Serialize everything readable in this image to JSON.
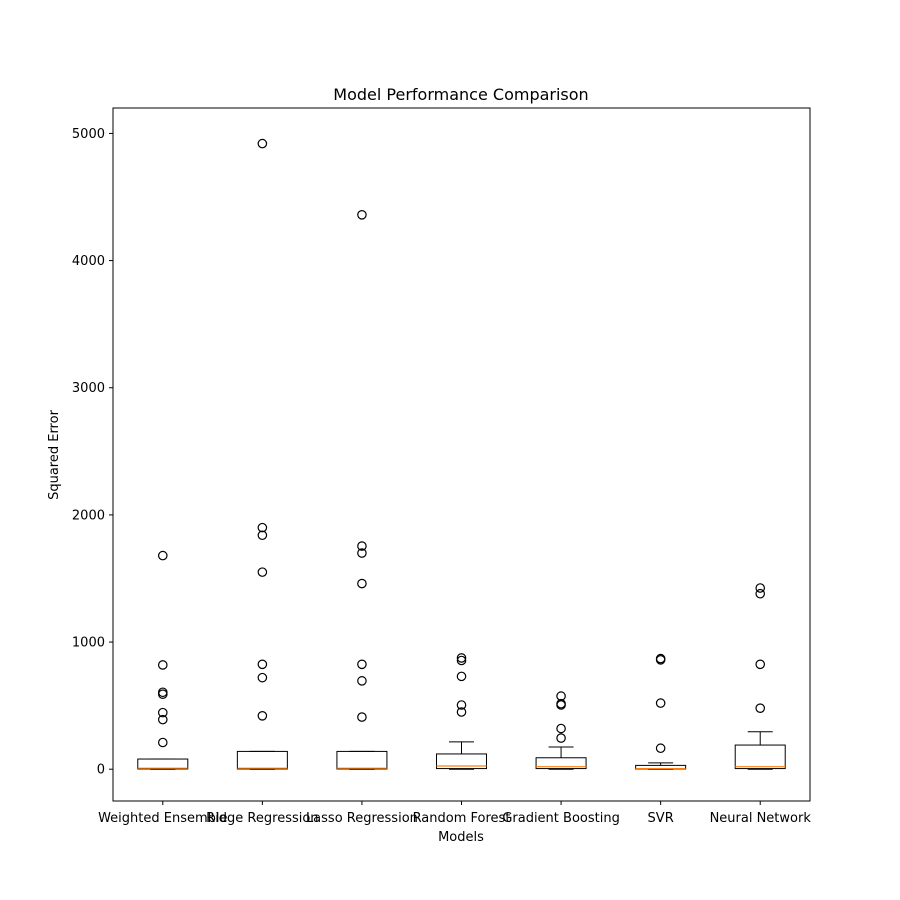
{
  "chart_data": {
    "type": "box",
    "title": "Model Performance Comparison",
    "xlabel": "Models",
    "ylabel": "Squared Error",
    "ylim": [
      -250,
      5200
    ],
    "yticks": [
      0,
      1000,
      2000,
      3000,
      4000,
      5000
    ],
    "grid": false,
    "categories": [
      "Weighted Ensemble",
      "Ridge Regression",
      "Lasso Regression",
      "Random Forest",
      "Gradient Boosting",
      "SVR",
      "Neural Network"
    ],
    "boxes": [
      {
        "whisker_low": 0,
        "q1": 2,
        "median": 8,
        "q3": 80,
        "whisker_high": 80,
        "outliers": [
          210,
          390,
          445,
          590,
          605,
          820,
          1680
        ]
      },
      {
        "whisker_low": 0,
        "q1": 2,
        "median": 8,
        "q3": 140,
        "whisker_high": 140,
        "outliers": [
          420,
          720,
          825,
          1550,
          1840,
          1900,
          4920
        ]
      },
      {
        "whisker_low": 0,
        "q1": 2,
        "median": 8,
        "q3": 140,
        "whisker_high": 140,
        "outliers": [
          410,
          695,
          825,
          1460,
          1700,
          1755,
          4360
        ]
      },
      {
        "whisker_low": 0,
        "q1": 5,
        "median": 25,
        "q3": 120,
        "whisker_high": 215,
        "outliers": [
          450,
          505,
          730,
          855,
          875
        ]
      },
      {
        "whisker_low": 0,
        "q1": 5,
        "median": 20,
        "q3": 90,
        "whisker_high": 175,
        "outliers": [
          245,
          320,
          505,
          515,
          575
        ]
      },
      {
        "whisker_low": 0,
        "q1": 2,
        "median": 5,
        "q3": 30,
        "whisker_high": 50,
        "outliers": [
          165,
          520,
          860,
          870
        ]
      },
      {
        "whisker_low": 0,
        "q1": 5,
        "median": 20,
        "q3": 190,
        "whisker_high": 295,
        "outliers": [
          480,
          825,
          1380,
          1425
        ]
      }
    ],
    "colors": {
      "box": "#000000",
      "median": "#ff7f0e",
      "outlier": "#000000"
    }
  }
}
